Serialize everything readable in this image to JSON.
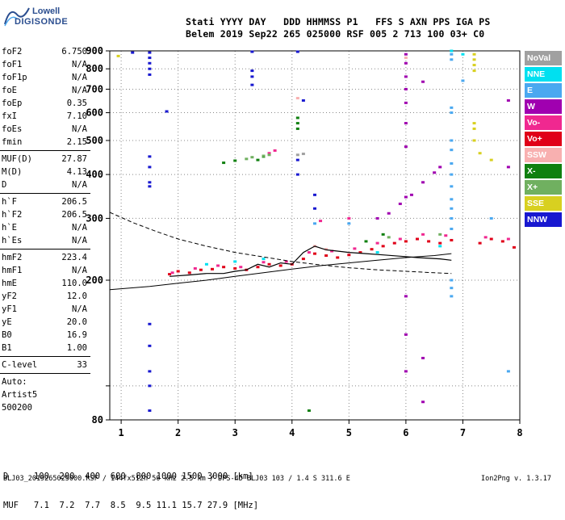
{
  "logo": {
    "top": "Lowell",
    "bottom": "DIGISONDE",
    "color": "#2a4d8f"
  },
  "header": {
    "row1": "Stati YYYY DAY   DDD HHMMSS P1   FFS S AXN PPS IGA PS",
    "row2": "Belem 2019 Sep22 265 025000 RSF 005 2 713 100 03+ C0"
  },
  "params_group1": [
    {
      "name": "foF2",
      "value": "6.750"
    },
    {
      "name": "foF1",
      "value": "N/A"
    },
    {
      "name": "foF1p",
      "value": "N/A"
    },
    {
      "name": "foE",
      "value": "N/A"
    },
    {
      "name": "foEp",
      "value": "0.35"
    },
    {
      "name": "fxI",
      "value": "7.10"
    },
    {
      "name": "foEs",
      "value": "N/A"
    },
    {
      "name": "fmin",
      "value": "2.15"
    }
  ],
  "params_group2": [
    {
      "name": "MUF(D)",
      "value": "27.87"
    },
    {
      "name": "M(D)",
      "value": "4.13"
    },
    {
      "name": "D",
      "value": "N/A"
    }
  ],
  "params_group3": [
    {
      "name": "h`F",
      "value": "206.5"
    },
    {
      "name": "h`F2",
      "value": "206.5"
    },
    {
      "name": "h`E",
      "value": "N/A"
    },
    {
      "name": "h`Es",
      "value": "N/A"
    }
  ],
  "params_group4": [
    {
      "name": "hmF2",
      "value": "223.4"
    },
    {
      "name": "hmF1",
      "value": "N/A"
    },
    {
      "name": "hmE",
      "value": "110.0"
    },
    {
      "name": "yF2",
      "value": "12.0"
    },
    {
      "name": "yF1",
      "value": "N/A"
    },
    {
      "name": "yE",
      "value": "20.0"
    },
    {
      "name": "B0",
      "value": "16.9"
    },
    {
      "name": "B1",
      "value": "1.00"
    }
  ],
  "params_group5": [
    {
      "name": "C-level",
      "value": "33"
    }
  ],
  "auto_text": [
    "Auto:",
    "Artist5",
    "500200"
  ],
  "legend": [
    {
      "label": "NoVal",
      "color": "#a0a0a0"
    },
    {
      "label": "NNE",
      "color": "#00e0f0"
    },
    {
      "label": "E",
      "color": "#4aa8f0"
    },
    {
      "label": "W",
      "color": "#a000b0"
    },
    {
      "label": "Vo-",
      "color": "#f02890"
    },
    {
      "label": "Vo+",
      "color": "#e00018"
    },
    {
      "label": "SSW",
      "color": "#f8b0b0"
    },
    {
      "label": "X-",
      "color": "#108010"
    },
    {
      "label": "X+",
      "color": "#70b060"
    },
    {
      "label": "SSE",
      "color": "#d8d020"
    },
    {
      "label": "NNW",
      "color": "#1818d0"
    }
  ],
  "dtable": {
    "row1": "D     100  200  400  600  800 1000 1500 3000 [km]",
    "row2": "MUF   7.1  7.2  7.7  8.5  9.5 11.1 15.7 27.9 [MHz]"
  },
  "footer": {
    "left": "BLJ03_2019265025000.RSF / 144fx512h 50 kHz 2.5 km / DPS-4D BLJ03 103 / 1.4 S 311.6 E",
    "right": "Ion2Png v. 1.3.17"
  },
  "chart_data": {
    "type": "scatter",
    "xlim": [
      0.8,
      8.0
    ],
    "ylim": [
      80,
      900
    ],
    "x_ticks": [
      1,
      2,
      3,
      4,
      5,
      6,
      7,
      8
    ],
    "y_ticks": [
      80,
      100,
      200,
      300,
      400,
      500,
      600,
      700,
      800,
      900
    ],
    "y_tick_labels": [
      "80",
      "",
      "200",
      "300",
      "400",
      "500",
      "600",
      "700",
      "800",
      "900"
    ],
    "y_scale": "log",
    "grid": true,
    "legend_placement": "right",
    "series": [
      {
        "name": "Vo+",
        "color": "#e00018",
        "points": [
          [
            1.85,
            208
          ],
          [
            2.0,
            212
          ],
          [
            2.2,
            210
          ],
          [
            2.4,
            214
          ],
          [
            2.6,
            215
          ],
          [
            2.8,
            218
          ],
          [
            3.0,
            216
          ],
          [
            3.2,
            214
          ],
          [
            3.4,
            218
          ],
          [
            3.6,
            222
          ],
          [
            3.8,
            220
          ],
          [
            4.0,
            222
          ],
          [
            4.2,
            230
          ],
          [
            4.4,
            238
          ],
          [
            4.6,
            235
          ],
          [
            4.8,
            232
          ],
          [
            5.0,
            236
          ],
          [
            5.2,
            240
          ],
          [
            5.4,
            245
          ],
          [
            5.6,
            250
          ],
          [
            5.8,
            255
          ],
          [
            6.0,
            258
          ],
          [
            6.2,
            262
          ],
          [
            6.4,
            258
          ],
          [
            6.6,
            255
          ],
          [
            6.8,
            260
          ],
          [
            7.3,
            255
          ],
          [
            7.5,
            262
          ],
          [
            7.7,
            258
          ],
          [
            7.9,
            248
          ]
        ]
      },
      {
        "name": "Vo-",
        "color": "#f02890",
        "points": [
          [
            1.9,
            210
          ],
          [
            2.3,
            216
          ],
          [
            2.7,
            220
          ],
          [
            3.1,
            218
          ],
          [
            3.5,
            225
          ],
          [
            3.9,
            226
          ],
          [
            4.3,
            240
          ],
          [
            4.7,
            242
          ],
          [
            5.1,
            246
          ],
          [
            5.5,
            255
          ],
          [
            5.9,
            262
          ],
          [
            6.3,
            270
          ],
          [
            6.7,
            268
          ],
          [
            7.4,
            265
          ],
          [
            7.8,
            262
          ],
          [
            3.6,
            460
          ],
          [
            3.7,
            468
          ],
          [
            4.5,
            295
          ],
          [
            5.0,
            300
          ]
        ]
      },
      {
        "name": "W",
        "color": "#a000b0",
        "points": [
          [
            5.5,
            300
          ],
          [
            5.7,
            310
          ],
          [
            5.9,
            330
          ],
          [
            6.0,
            345
          ],
          [
            6.1,
            350
          ],
          [
            6.3,
            380
          ],
          [
            6.5,
            405
          ],
          [
            6.6,
            420
          ],
          [
            6.0,
            480
          ],
          [
            6.0,
            560
          ],
          [
            6.0,
            640
          ],
          [
            6.0,
            700
          ],
          [
            6.0,
            760
          ],
          [
            6.0,
            830
          ],
          [
            6.0,
            880
          ],
          [
            6.3,
            735
          ],
          [
            6.0,
            180
          ],
          [
            6.0,
            140
          ],
          [
            6.0,
            110
          ],
          [
            6.3,
            120
          ],
          [
            6.3,
            90
          ],
          [
            7.8,
            420
          ],
          [
            7.8,
            650
          ]
        ]
      },
      {
        "name": "NNW",
        "color": "#1818d0",
        "points": [
          [
            1.5,
            890
          ],
          [
            1.5,
            860
          ],
          [
            1.5,
            830
          ],
          [
            1.5,
            800
          ],
          [
            1.5,
            770
          ],
          [
            1.5,
            450
          ],
          [
            1.5,
            420
          ],
          [
            1.5,
            380
          ],
          [
            1.5,
            370
          ],
          [
            1.5,
            150
          ],
          [
            1.5,
            130
          ],
          [
            1.5,
            110
          ],
          [
            1.5,
            100
          ],
          [
            1.5,
            85
          ],
          [
            1.2,
            890
          ],
          [
            3.3,
            895
          ],
          [
            3.3,
            790
          ],
          [
            3.3,
            760
          ],
          [
            3.3,
            720
          ],
          [
            4.2,
            650
          ],
          [
            4.1,
            440
          ],
          [
            4.1,
            400
          ],
          [
            4.4,
            350
          ],
          [
            4.4,
            320
          ],
          [
            1.8,
            605
          ],
          [
            4.1,
            895
          ]
        ]
      },
      {
        "name": "E",
        "color": "#4aa8f0",
        "points": [
          [
            6.8,
            880
          ],
          [
            6.8,
            850
          ],
          [
            6.8,
            620
          ],
          [
            6.8,
            600
          ],
          [
            6.8,
            500
          ],
          [
            6.8,
            470
          ],
          [
            6.8,
            430
          ],
          [
            6.8,
            400
          ],
          [
            6.8,
            370
          ],
          [
            6.8,
            340
          ],
          [
            6.8,
            320
          ],
          [
            6.8,
            300
          ],
          [
            6.8,
            280
          ],
          [
            6.8,
            200
          ],
          [
            6.8,
            190
          ],
          [
            6.8,
            180
          ],
          [
            7.0,
            740
          ],
          [
            7.5,
            300
          ],
          [
            7.8,
            110
          ],
          [
            4.4,
            290
          ],
          [
            5.0,
            290
          ]
        ]
      },
      {
        "name": "NNE",
        "color": "#00e0f0",
        "points": [
          [
            6.8,
            900
          ],
          [
            7.0,
            880
          ],
          [
            2.5,
            222
          ],
          [
            3.0,
            226
          ],
          [
            3.5,
            230
          ],
          [
            5.5,
            240
          ],
          [
            6.6,
            250
          ]
        ]
      },
      {
        "name": "X-",
        "color": "#108010",
        "points": [
          [
            4.1,
            580
          ],
          [
            4.1,
            560
          ],
          [
            4.1,
            540
          ],
          [
            3.4,
            440
          ],
          [
            3.5,
            450
          ],
          [
            3.0,
            438
          ],
          [
            2.8,
            432
          ],
          [
            5.3,
            258
          ],
          [
            5.6,
            270
          ],
          [
            4.3,
            85
          ]
        ]
      },
      {
        "name": "X+",
        "color": "#70b060",
        "points": [
          [
            3.2,
            443
          ],
          [
            3.3,
            448
          ],
          [
            3.5,
            452
          ],
          [
            3.6,
            455
          ],
          [
            5.7,
            265
          ],
          [
            6.6,
            270
          ]
        ]
      },
      {
        "name": "SSE",
        "color": "#d8d020",
        "points": [
          [
            0.95,
            870
          ],
          [
            7.2,
            880
          ],
          [
            7.2,
            850
          ],
          [
            7.2,
            820
          ],
          [
            7.2,
            790
          ],
          [
            7.2,
            560
          ],
          [
            7.2,
            540
          ],
          [
            7.2,
            500
          ],
          [
            7.3,
            460
          ],
          [
            7.5,
            440
          ]
        ]
      },
      {
        "name": "SSW",
        "color": "#f8b0b0",
        "points": [
          [
            4.1,
            660
          ],
          [
            6.0,
            860
          ],
          [
            4.4,
            250
          ],
          [
            4.6,
            245
          ]
        ]
      },
      {
        "name": "NoVal",
        "color": "#a0a0a0",
        "points": [
          [
            4.1,
            455
          ],
          [
            4.2,
            458
          ]
        ]
      }
    ],
    "profile_line": [
      [
        0.8,
        188
      ],
      [
        1.5,
        192
      ],
      [
        2.0,
        196
      ],
      [
        2.5,
        200
      ],
      [
        3.0,
        205
      ],
      [
        3.5,
        210
      ],
      [
        4.0,
        215
      ],
      [
        4.5,
        220
      ],
      [
        5.0,
        224
      ],
      [
        5.5,
        228
      ],
      [
        6.0,
        232
      ],
      [
        6.5,
        235
      ],
      [
        6.8,
        238
      ]
    ],
    "trace_line": [
      [
        1.85,
        205
      ],
      [
        2.2,
        207
      ],
      [
        2.5,
        209
      ],
      [
        2.8,
        209
      ],
      [
        3.0,
        212
      ],
      [
        3.2,
        214
      ],
      [
        3.4,
        222
      ],
      [
        3.6,
        218
      ],
      [
        3.8,
        224
      ],
      [
        4.0,
        222
      ],
      [
        4.2,
        240
      ],
      [
        4.4,
        250
      ],
      [
        4.6,
        244
      ],
      [
        4.8,
        242
      ],
      [
        5.0,
        240
      ],
      [
        5.3,
        238
      ],
      [
        5.6,
        236
      ],
      [
        5.9,
        234
      ],
      [
        6.2,
        232
      ],
      [
        6.6,
        230
      ],
      [
        6.8,
        228
      ]
    ],
    "dashed_line": [
      [
        0.8,
        312
      ],
      [
        1.2,
        292
      ],
      [
        1.6,
        276
      ],
      [
        2.0,
        262
      ],
      [
        2.5,
        250
      ],
      [
        3.0,
        240
      ],
      [
        3.5,
        233
      ],
      [
        4.0,
        226
      ],
      [
        4.5,
        221
      ],
      [
        5.0,
        217
      ],
      [
        5.5,
        214
      ],
      [
        6.0,
        212
      ],
      [
        6.5,
        210
      ],
      [
        6.8,
        209
      ]
    ]
  }
}
